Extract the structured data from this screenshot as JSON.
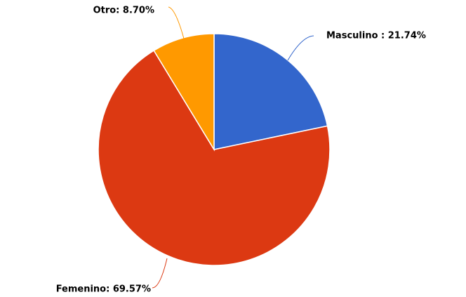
{
  "chart_data": {
    "type": "pie",
    "values": [
      21.74,
      69.57,
      8.7
    ],
    "value_labels": [
      "Masculino : 21.74%",
      "Femenino: 69.57%",
      "Otro: 8.70%"
    ],
    "colors": [
      "#3366cc",
      "#dc3912",
      "#ff9900"
    ]
  }
}
